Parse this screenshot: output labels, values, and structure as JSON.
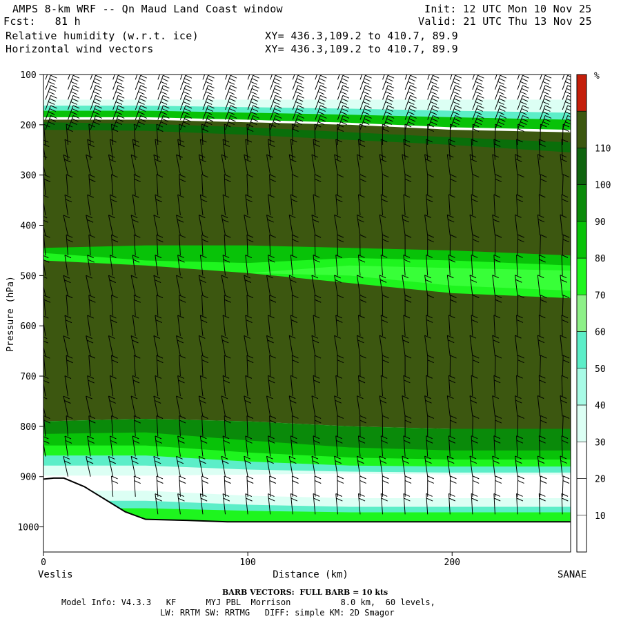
{
  "header": {
    "title": "AMPS 8-km WRF -- Qn Maud Land Coast window",
    "forecast": "Fcst:   81 h",
    "init": "Init: 12 UTC Mon 10 Nov 25",
    "valid": "Valid: 21 UTC Thu 13 Nov 25",
    "field1": "Relative humidity (w.r.t. ice)",
    "field2": "Horizontal wind vectors",
    "xy1": "XY= 436.3,109.2 to 410.7, 89.9",
    "xy2": "XY= 436.3,109.2 to 410.7, 89.9"
  },
  "footer": {
    "barb_note": "BARB VECTORS:  FULL BARB = 10 kts",
    "model_info": "Model Info: V4.3.3   KF      MYJ PBL  Morrison          8.0 km,  60 levels,",
    "model_info2": "LW: RRTM SW: RRTMG   DIFF: simple KM: 2D Smagor"
  },
  "chart_data": {
    "type": "heatmap",
    "ylabel": "Pressure (hPa)",
    "xlabel": "Distance (km)",
    "x_left_label": "Veslis",
    "x_right_label": "SANAE",
    "xlim": [
      0,
      258
    ],
    "ylim": [
      1050,
      100
    ],
    "x_ticks": [
      0,
      100,
      200
    ],
    "y_ticks": [
      100,
      200,
      300,
      400,
      500,
      600,
      700,
      800,
      900,
      1000
    ],
    "colorbar": {
      "unit": "%",
      "levels": [
        10,
        20,
        30,
        40,
        50,
        60,
        70,
        80,
        90,
        100,
        110
      ],
      "colors": [
        "#ffffff",
        "#ffffff",
        "#ffffff",
        "#dcfff4",
        "#a8fbe6",
        "#5ceec8",
        "#8ef088",
        "#1ef51e",
        "#08c208",
        "#0a8a0a",
        "#0f640f",
        "#3c5710",
        "#c41e0a"
      ]
    },
    "bands": [
      {
        "name": "upper-moist-layer",
        "value": 100,
        "color": "#3c5710",
        "top": [
          190,
          190,
          195,
          200,
          210,
          215
        ],
        "bottom": [
          790,
          785,
          790,
          800,
          805,
          805
        ]
      },
      {
        "name": "mid-dry-tongue",
        "value": 80,
        "color": "#08c208",
        "top": [
          445,
          440,
          440,
          445,
          450,
          460
        ],
        "bottom": [
          460,
          475,
          490,
          510,
          530,
          545
        ]
      },
      {
        "name": "mid-dry-core",
        "value": 70,
        "color": "#1ef51e",
        "top": [
          470,
          470,
          470,
          470,
          475,
          480
        ],
        "bottom": [
          480,
          490,
          500,
          515,
          530,
          540
        ]
      }
    ],
    "terrain_pressure": {
      "x": [
        0,
        5,
        10,
        20,
        30,
        40,
        50,
        70,
        90,
        120,
        160,
        200,
        258
      ],
      "p": [
        905,
        903,
        903,
        920,
        945,
        970,
        985,
        987,
        990,
        990,
        990,
        990,
        990
      ]
    },
    "barb_columns_x": [
      1,
      12,
      23,
      34,
      45,
      56,
      67,
      78,
      89,
      100,
      111,
      122,
      133,
      144,
      155,
      166,
      177,
      188,
      199,
      210,
      221,
      232,
      243,
      254
    ],
    "barb_levels_hpa": [
      110,
      130,
      150,
      170,
      190,
      210,
      240,
      270,
      300,
      340,
      380,
      420,
      460,
      500,
      540,
      580,
      620,
      660,
      700,
      740,
      780,
      820,
      860,
      900,
      940,
      975
    ]
  }
}
